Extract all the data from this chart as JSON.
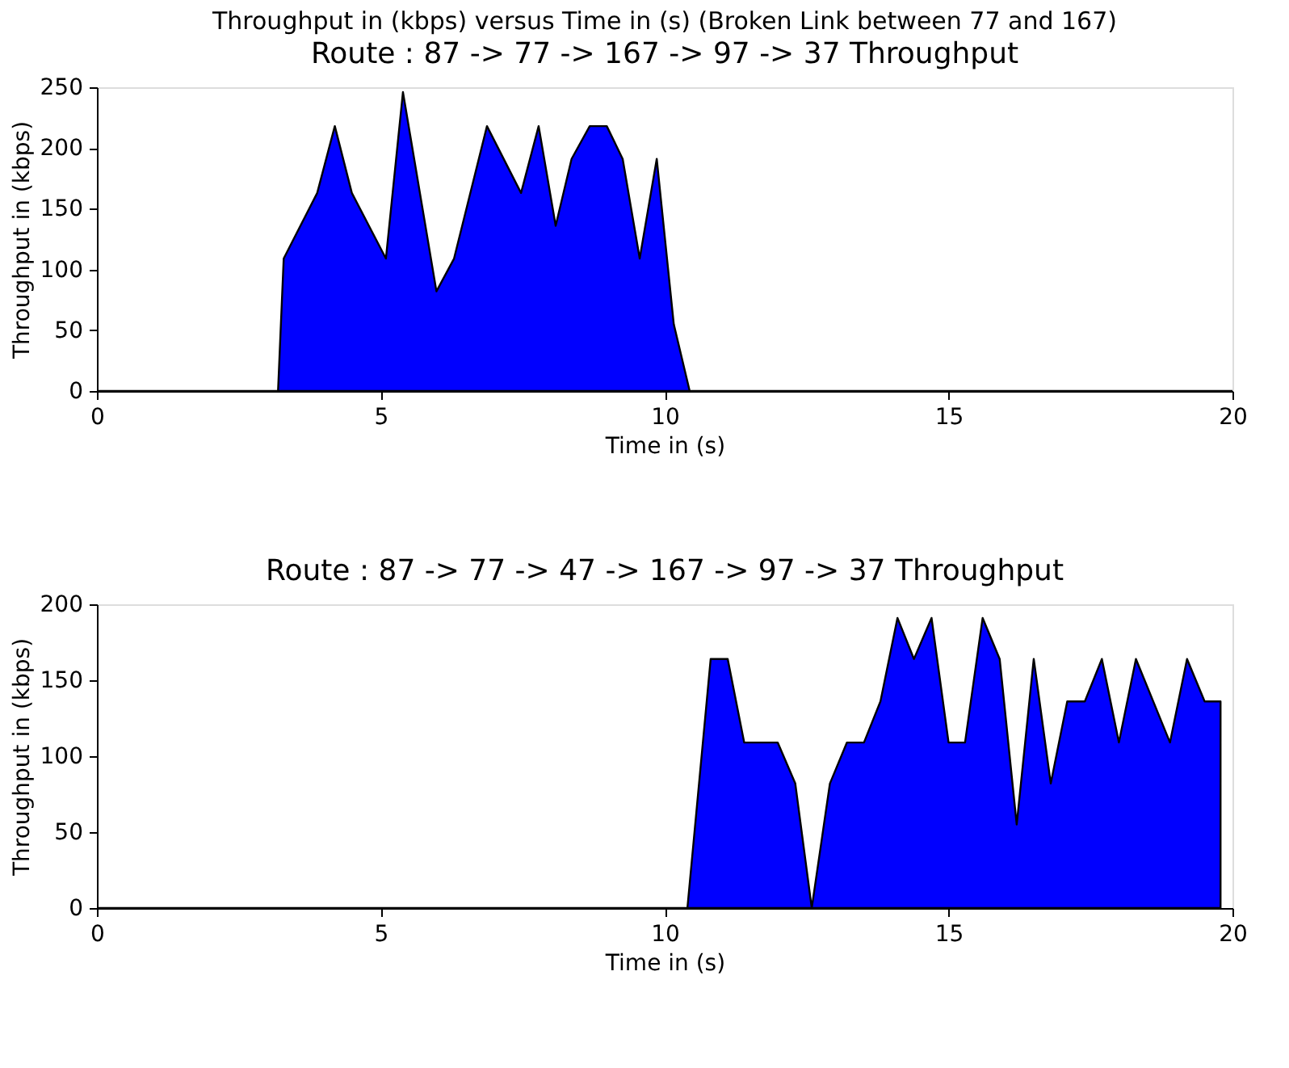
{
  "chart_data": [
    {
      "type": "area",
      "title": "Throughput in (kbps) versus Time in (s) (Broken Link between 77 and 167)",
      "subtitle": "Route : 87 -> 77 -> 167 -> 97 -> 37 Throughput",
      "xlabel": "Time in (s)",
      "ylabel": "Throughput in (kbps)",
      "color": "#0000ff",
      "x": [
        0,
        3.19,
        3.29,
        3.88,
        4.19,
        4.49,
        5.09,
        5.39,
        5.98,
        6.29,
        6.87,
        7.47,
        7.78,
        8.08,
        8.36,
        8.68,
        8.98,
        9.26,
        9.56,
        9.86,
        10.16,
        10.44,
        20
      ],
      "values": [
        0,
        0,
        109,
        163,
        218,
        163,
        109,
        246,
        82,
        109,
        218,
        163,
        218,
        136,
        191,
        218,
        218,
        191,
        109,
        191,
        55,
        0,
        0
      ],
      "xlim": [
        0,
        20
      ],
      "xticks": [
        0,
        5,
        10,
        15,
        20
      ],
      "ylim": [
        0,
        250
      ],
      "yticks": [
        0,
        50,
        100,
        150,
        200,
        250
      ],
      "grid": false
    },
    {
      "type": "area",
      "title": "Route : 87 -> 77 -> 47 -> 167 -> 97 -> 37 Throughput",
      "xlabel": "Time in (s)",
      "ylabel": "Throughput in (kbps)",
      "color": "#0000ff",
      "x": [
        0,
        10.4,
        10.81,
        11.11,
        11.4,
        11.99,
        12.3,
        12.59,
        12.91,
        13.21,
        13.51,
        13.8,
        14.1,
        14.39,
        14.7,
        15.0,
        15.29,
        15.6,
        15.9,
        16.2,
        16.5,
        16.8,
        17.09,
        17.4,
        17.7,
        18.0,
        18.3,
        18.9,
        19.2,
        19.51,
        19.79
      ],
      "values": [
        0,
        0,
        164,
        164,
        109,
        109,
        82,
        0,
        82,
        109,
        109,
        136,
        191,
        164,
        191,
        109,
        109,
        191,
        164,
        55,
        164,
        82,
        136,
        136,
        164,
        109,
        164,
        109,
        164,
        136,
        136
      ],
      "xlim": [
        0,
        20
      ],
      "xticks": [
        0,
        5,
        10,
        15,
        20
      ],
      "ylim": [
        0,
        200
      ],
      "yticks": [
        0,
        50,
        100,
        150,
        200
      ],
      "grid": false
    }
  ]
}
